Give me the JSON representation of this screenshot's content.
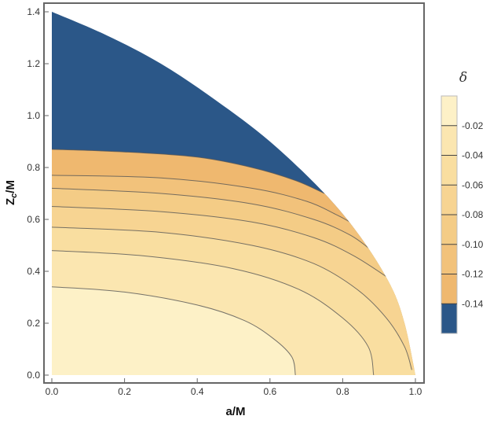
{
  "chart_data": {
    "type": "contour",
    "title": "",
    "xlabel": "a/M",
    "ylabel_main": "Z",
    "ylabel_sub": "c",
    "ylabel_suffix": "/M",
    "xlim": [
      0.0,
      1.0
    ],
    "ylim": [
      0.0,
      1.4
    ],
    "x_ticks": [
      "0.0",
      "0.2",
      "0.4",
      "0.6",
      "0.8",
      "1.0"
    ],
    "y_ticks": [
      "0.0",
      "0.2",
      "0.4",
      "0.6",
      "0.8",
      "1.0",
      "1.2",
      "1.4"
    ],
    "grid": false,
    "legend": {
      "title": "δ",
      "position": "right",
      "ticks": [
        "-0.02",
        "-0.04",
        "-0.06",
        "-0.08",
        "-0.10",
        "-0.12",
        "-0.14"
      ],
      "range": [
        -0.16,
        0.0
      ]
    },
    "domain_boundary": [
      [
        0.0,
        1.4
      ],
      [
        0.15,
        1.31
      ],
      [
        0.3,
        1.2
      ],
      [
        0.45,
        1.06
      ],
      [
        0.6,
        0.9
      ],
      [
        0.75,
        0.7
      ],
      [
        0.85,
        0.53
      ],
      [
        0.93,
        0.35
      ],
      [
        0.97,
        0.2
      ],
      [
        1.0,
        0.0
      ]
    ],
    "region_below_min_level": {
      "level": -0.14,
      "color": "#2b5788",
      "lower_boundary": [
        [
          0.0,
          0.87
        ],
        [
          0.2,
          0.86
        ],
        [
          0.4,
          0.84
        ],
        [
          0.55,
          0.8
        ],
        [
          0.67,
          0.75
        ],
        [
          0.75,
          0.7
        ]
      ]
    },
    "contour_levels": [
      {
        "level": -0.02,
        "points": [
          [
            0.0,
            0.34
          ],
          [
            0.2,
            0.32
          ],
          [
            0.4,
            0.27
          ],
          [
            0.53,
            0.21
          ],
          [
            0.61,
            0.14
          ],
          [
            0.66,
            0.07
          ],
          [
            0.67,
            0.0
          ]
        ]
      },
      {
        "level": -0.04,
        "points": [
          [
            0.0,
            0.48
          ],
          [
            0.25,
            0.46
          ],
          [
            0.5,
            0.41
          ],
          [
            0.68,
            0.33
          ],
          [
            0.8,
            0.22
          ],
          [
            0.87,
            0.11
          ],
          [
            0.885,
            0.0
          ]
        ]
      },
      {
        "level": -0.06,
        "points": [
          [
            0.0,
            0.57
          ],
          [
            0.3,
            0.55
          ],
          [
            0.55,
            0.5
          ],
          [
            0.72,
            0.43
          ],
          [
            0.84,
            0.33
          ],
          [
            0.92,
            0.22
          ],
          [
            0.97,
            0.11
          ],
          [
            0.99,
            0.02
          ]
        ]
      },
      {
        "level": -0.08,
        "points": [
          [
            0.0,
            0.65
          ],
          [
            0.3,
            0.63
          ],
          [
            0.55,
            0.59
          ],
          [
            0.72,
            0.53
          ],
          [
            0.83,
            0.46
          ],
          [
            0.93,
            0.37
          ]
        ]
      },
      {
        "level": -0.1,
        "points": [
          [
            0.0,
            0.72
          ],
          [
            0.3,
            0.7
          ],
          [
            0.55,
            0.66
          ],
          [
            0.72,
            0.6
          ],
          [
            0.82,
            0.54
          ],
          [
            0.88,
            0.48
          ]
        ]
      },
      {
        "level": -0.12,
        "points": [
          [
            0.0,
            0.77
          ],
          [
            0.3,
            0.76
          ],
          [
            0.55,
            0.72
          ],
          [
            0.7,
            0.67
          ],
          [
            0.78,
            0.62
          ],
          [
            0.82,
            0.59
          ]
        ]
      },
      {
        "level": -0.14,
        "points": [
          [
            0.0,
            0.87
          ],
          [
            0.2,
            0.86
          ],
          [
            0.4,
            0.84
          ],
          [
            0.55,
            0.8
          ],
          [
            0.67,
            0.75
          ],
          [
            0.75,
            0.7
          ]
        ]
      }
    ],
    "band_colors": [
      "#fdf1c7",
      "#fbe6b0",
      "#f9dea0",
      "#f7d492",
      "#f4cc86",
      "#f2c27b",
      "#efb86f",
      "#2b5788"
    ]
  }
}
